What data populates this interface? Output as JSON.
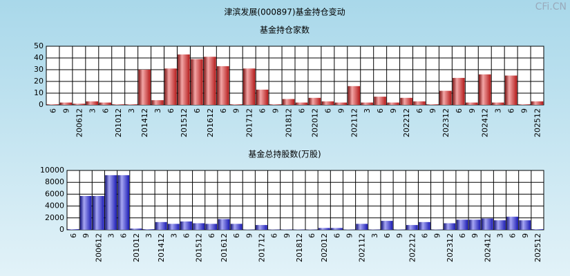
{
  "title": "津滨发展(000897)基金持仓变动",
  "watermark": "CFi.CN",
  "chart_data": [
    {
      "type": "bar",
      "title": "基金持仓家数",
      "color": "#e02020",
      "grid": true,
      "categories": [
        "6",
        "9",
        "200612",
        "3",
        "6",
        "201012",
        "3",
        "201412",
        "3",
        "6",
        "201512",
        "6",
        "201612",
        "6",
        "9",
        "201712",
        "6",
        "9",
        "201812",
        "6",
        "202012",
        "6",
        "9",
        "202112",
        "3",
        "6",
        "9",
        "202212",
        "6",
        "9",
        "202312",
        "6",
        "9",
        "202412",
        "3",
        "6",
        "9",
        "202512"
      ],
      "values": [
        0.5,
        2,
        1,
        3,
        2,
        0.5,
        0.5,
        30,
        4,
        31,
        43,
        39,
        41,
        33,
        0.5,
        31,
        13,
        0.5,
        5,
        2,
        6,
        3,
        2,
        16,
        2,
        7,
        2,
        6,
        3,
        0.5,
        12,
        23,
        2,
        26,
        2,
        25,
        0.5,
        3
      ],
      "ylim": [
        0,
        50
      ],
      "yticks": [
        0,
        10,
        20,
        30,
        40,
        50
      ]
    },
    {
      "type": "bar",
      "title": "基金总持股数(万股)",
      "color": "#2020e0",
      "grid": true,
      "categories": [
        "6",
        "9",
        "200612",
        "3",
        "6",
        "201012",
        "3",
        "201412",
        "3",
        "6",
        "201512",
        "6",
        "201612",
        "6",
        "9",
        "201712",
        "6",
        "9",
        "201812",
        "6",
        "202012",
        "6",
        "9",
        "202112",
        "3",
        "6",
        "9",
        "202212",
        "6",
        "9",
        "202312",
        "6",
        "9",
        "202412",
        "3",
        "6",
        "9",
        "202512"
      ],
      "values": [
        100,
        5700,
        5700,
        9200,
        9200,
        200,
        100,
        1300,
        1000,
        1400,
        1100,
        1000,
        1800,
        1000,
        50,
        800,
        50,
        50,
        50,
        50,
        300,
        300,
        50,
        1000,
        50,
        1500,
        50,
        800,
        1300,
        50,
        1100,
        1700,
        1700,
        1900,
        1600,
        2200,
        1600,
        100
      ],
      "ylim": [
        0,
        10000
      ],
      "yticks": [
        0,
        2000,
        4000,
        6000,
        8000,
        10000
      ]
    }
  ]
}
